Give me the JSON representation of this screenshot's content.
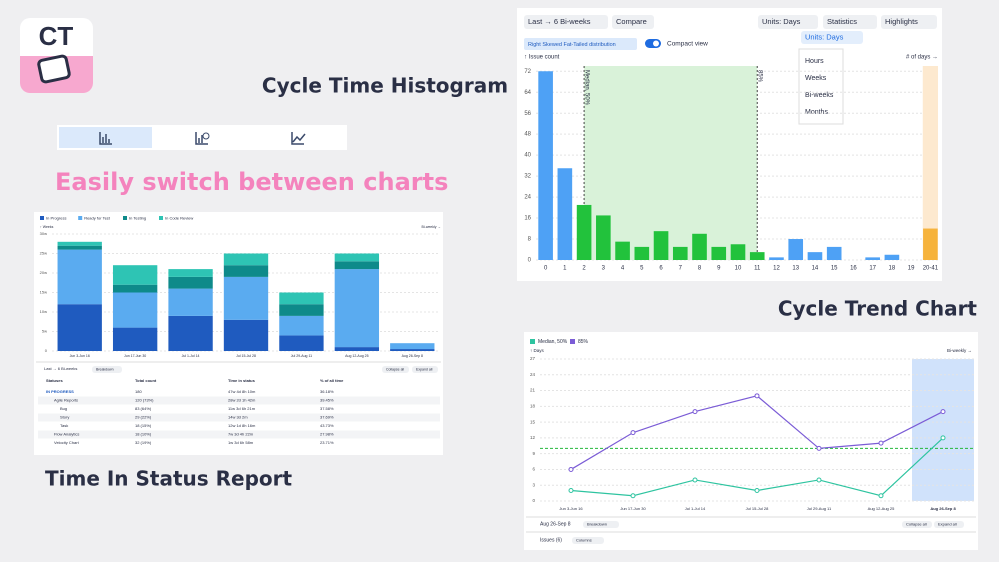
{
  "logo": "CT",
  "headings": {
    "histogram": "Cycle Time Histogram",
    "switch": "Easily switch between charts",
    "status": "Time In Status Report",
    "trend": "Cycle Trend Chart"
  },
  "histogram": {
    "toolbar": {
      "range": "Last → 6 Bi-weeks",
      "compare": "Compare",
      "units": "Units: Days",
      "statistics": "Statistics",
      "highlights": "Highlights"
    },
    "distribution": "Right Skewed Fat-Tailed distribution",
    "compact": "Compact view",
    "units_menu": {
      "label": "Units: Days",
      "options": [
        "Hours",
        "Weeks",
        "Bi-weeks",
        "Months"
      ]
    },
    "chart": {
      "type": "bar",
      "y_label": "↑ Issue count",
      "x_label": "# of days →",
      "median_label": "Median, 50%",
      "p85_label": "85%",
      "categories": [
        "0",
        "1",
        "2",
        "3",
        "4",
        "5",
        "6",
        "7",
        "8",
        "9",
        "10",
        "11",
        "12",
        "13",
        "14",
        "15",
        "16",
        "17",
        "18",
        "19",
        "20-41"
      ],
      "values": [
        72,
        35,
        21,
        17,
        7,
        5,
        11,
        5,
        10,
        5,
        6,
        3,
        1,
        8,
        3,
        5,
        0,
        1,
        2,
        0,
        12
      ],
      "colors": [
        "#4ea1f5",
        "#4ea1f5",
        "#22c23c",
        "#22c23c",
        "#22c23c",
        "#22c23c",
        "#22c23c",
        "#22c23c",
        "#22c23c",
        "#22c23c",
        "#22c23c",
        "#22c23c",
        "#4ea1f5",
        "#4ea1f5",
        "#4ea1f5",
        "#4ea1f5",
        "#4ea1f5",
        "#4ea1f5",
        "#4ea1f5",
        "#4ea1f5",
        "#f6b33c"
      ],
      "ylim": [
        0,
        74
      ],
      "yticks": [
        0,
        8,
        16,
        24,
        32,
        40,
        48,
        56,
        64,
        72
      ],
      "grid": true
    }
  },
  "status": {
    "chart": {
      "type": "stacked_bar",
      "y_label": "↑ Weeks",
      "x_label": "Bi-weekly →",
      "categories": [
        "Jun 3-Jun 16",
        "Jun 17-Jun 30",
        "Jul 1-Jul 14",
        "Jul 15-Jul 28",
        "Jul 29-Aug 11",
        "Aug 12-Aug 25",
        "Aug 26-Sep 8"
      ],
      "series": [
        {
          "name": "In Progress",
          "color": "#1f5bbf",
          "values": [
            12,
            6,
            9,
            8,
            4,
            1,
            0.5
          ]
        },
        {
          "name": "Ready for Test",
          "color": "#5aabf0",
          "values": [
            14,
            9,
            7,
            11,
            5,
            20,
            1.5
          ]
        },
        {
          "name": "In Testing",
          "color": "#0e8a8a",
          "values": [
            1,
            2,
            3,
            3,
            3,
            2,
            0
          ]
        },
        {
          "name": "In Code Review",
          "color": "#2ec4b4",
          "values": [
            1,
            5,
            2,
            3,
            3,
            2,
            0
          ]
        }
      ],
      "ylim": [
        0,
        30
      ],
      "yticks": [
        0,
        {
          "value": 5,
          "label": "5w"
        },
        {
          "value": 10,
          "label": "10w"
        },
        {
          "value": 15,
          "label": "15w"
        },
        {
          "value": 20,
          "label": "20w"
        },
        {
          "value": 25,
          "label": "25w"
        },
        {
          "value": 30,
          "label": "30w"
        }
      ]
    },
    "toolbar": {
      "range": "Last → 6 Bi-weeks",
      "breakdown": "Breakdown",
      "collapse": "Collapse all",
      "expand": "Expand all"
    },
    "table": {
      "headers": [
        "Statuses",
        "Total count",
        "Time in status",
        "% of all time"
      ],
      "rows": [
        [
          "IN PROGRESS",
          "180",
          "47w 4d 8h 10m",
          "36.18%"
        ],
        [
          "Agile Reports",
          "120 (73%)",
          "28w 2d 1h 42m",
          "39.45%"
        ],
        [
          "Bug",
          "83 (64%)",
          "11w 3d 6h 21m",
          "37.58%"
        ],
        [
          "Story",
          "29 (22%)",
          "14w 3d 2m",
          "37.69%"
        ],
        [
          "Task",
          "18 (15%)",
          "12w 1d 8h 16m",
          "43.73%"
        ],
        [
          "Flow Analytics",
          "18 (10%)",
          "7w 3d 4h 22m",
          "27.98%"
        ],
        [
          "Velocity Chart",
          "32 (19%)",
          "1w 3d 6h 58m",
          "23.71%"
        ]
      ]
    }
  },
  "trend": {
    "chart": {
      "type": "line",
      "y_label": "↑ Days",
      "x_label": "Bi-weekly →",
      "categories": [
        "Jun 3-Jun 16",
        "Jun 17-Jun 30",
        "Jul 1-Jul 14",
        "Jul 15-Jul 28",
        "Jul 29-Aug 11",
        "Aug 12-Aug 25",
        "Aug 26-Sep 8"
      ],
      "series": [
        {
          "name": "Median, 50%",
          "color": "#2ec4a0",
          "values": [
            2,
            1,
            4,
            2,
            4,
            1,
            12
          ]
        },
        {
          "name": "85%",
          "color": "#7b5cd6",
          "values": [
            6,
            13,
            17,
            20,
            10,
            11,
            17
          ]
        }
      ],
      "ylim": [
        0,
        27
      ],
      "yticks": [
        0,
        3,
        6,
        9,
        12,
        15,
        18,
        21,
        24,
        27
      ],
      "median_line": 10
    },
    "footer": {
      "period": "Aug 26-Sep 8",
      "breakdown": "Breakdown",
      "collapse": "Collapse all",
      "expand": "Expand all",
      "issues": "Issues (6)",
      "columns": "Columns"
    }
  }
}
